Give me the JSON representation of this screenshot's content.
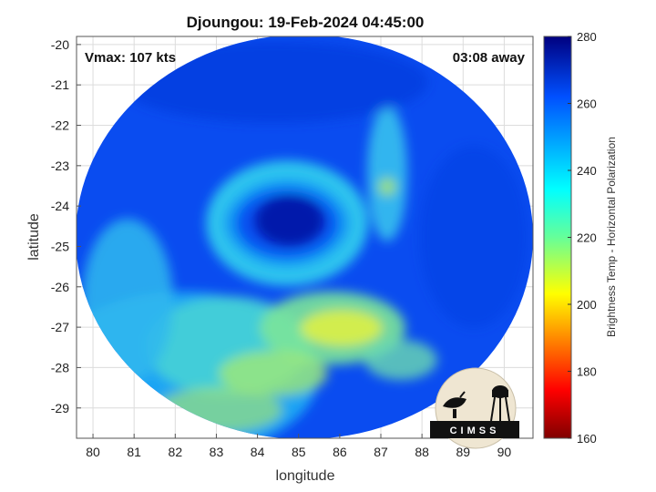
{
  "chart_data": {
    "type": "heatmap",
    "title": "Djoungou: 19-Feb-2024 04:45:00",
    "annotations": {
      "vmax": "Vmax: 107 kts",
      "time_away": "03:08 away"
    },
    "xlabel": "longitude",
    "ylabel": "latitude",
    "xlim": [
      79.6,
      90.7
    ],
    "ylim": [
      -29.75,
      -19.8
    ],
    "x_ticks": [
      80,
      81,
      82,
      83,
      84,
      85,
      86,
      87,
      88,
      89,
      90
    ],
    "y_ticks": [
      -20,
      -21,
      -22,
      -23,
      -24,
      -25,
      -26,
      -27,
      -28,
      -29
    ],
    "grid": true,
    "colorbar": {
      "label": "Brightness Temp - Horizontal Polarization",
      "range": [
        160,
        280
      ],
      "ticks": [
        280,
        260,
        240,
        220,
        200,
        180,
        160
      ],
      "colormap": "jet"
    },
    "features": {
      "eye_center": {
        "lon": 84.8,
        "lat": -24.2,
        "tb": 272
      },
      "warm_band_min": {
        "lon": 85.5,
        "lat": -26.9,
        "tb": 214
      },
      "background_tb": 262
    },
    "logo": "CIMSS"
  }
}
